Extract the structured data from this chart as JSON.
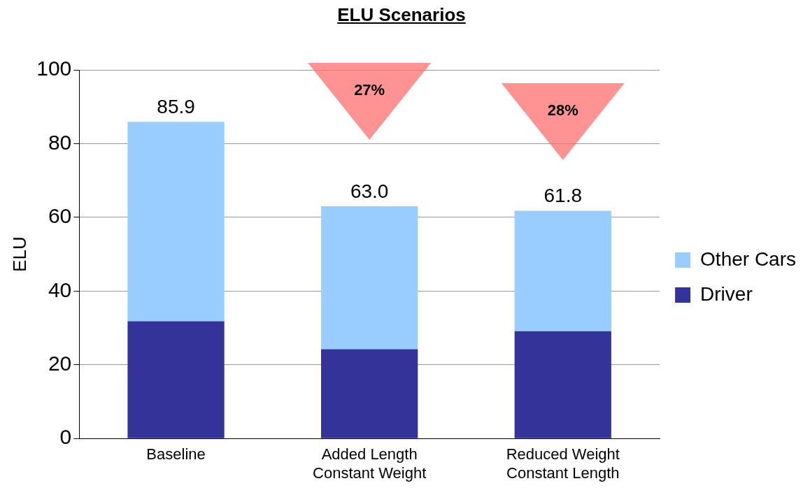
{
  "chart_data": {
    "type": "bar",
    "title": "ELU Scenarios",
    "ylabel": "ELU",
    "categories": [
      "Baseline",
      "Added Length\nConstant Weight",
      "Reduced Weight\nConstant Length"
    ],
    "series": [
      {
        "name": "Driver",
        "color": "#333399",
        "values": [
          31.8,
          24.2,
          29.1
        ]
      },
      {
        "name": "Other Cars",
        "color": "#99ccff",
        "values": [
          54.1,
          38.8,
          32.7
        ]
      }
    ],
    "stacked": true,
    "totals": [
      "85.9",
      "63.0",
      "61.8"
    ],
    "ylim": [
      0,
      100
    ],
    "yticks": [
      0,
      20,
      40,
      60,
      80,
      100
    ],
    "grid": "y",
    "legend": "right",
    "annotations": [
      "27%",
      "28%"
    ]
  }
}
